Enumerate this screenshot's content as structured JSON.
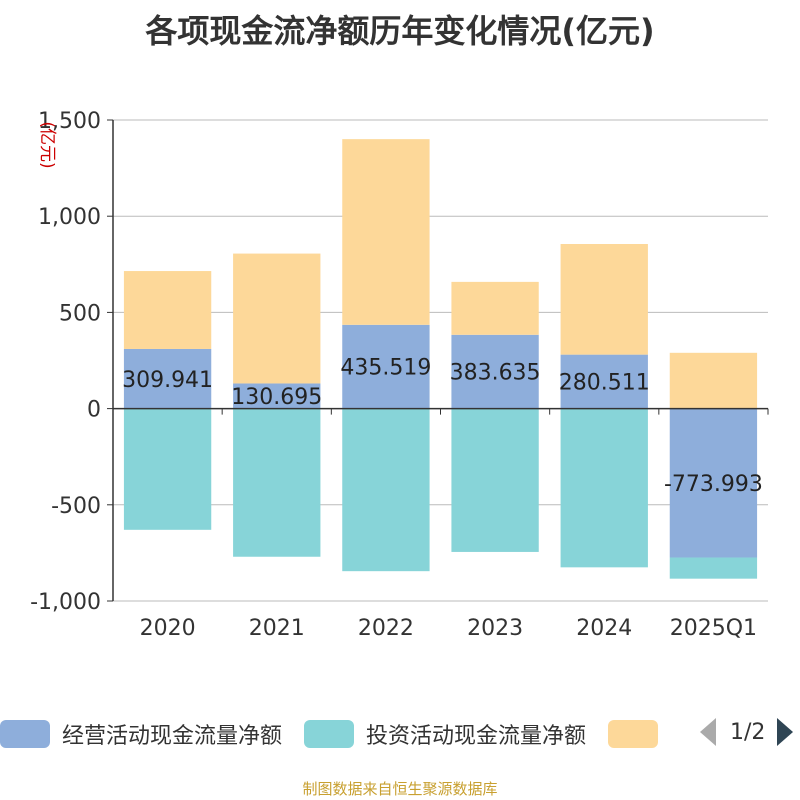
{
  "title": "各项现金流净额历年变化情况(亿元)",
  "source": "制图数据来自恒生聚源数据库",
  "legend_page": "1/2",
  "colors": {
    "operating": "#8eaedb",
    "investing": "#87d4d8",
    "financing": "#fdd899"
  },
  "chart_data": {
    "type": "bar",
    "stacked": true,
    "title": "各项现金流净额历年变化情况(亿元)",
    "ylabel": "(亿元)",
    "ylim": [
      -1000,
      1500
    ],
    "yticks": [
      -1000,
      -500,
      0,
      500,
      1000,
      1500
    ],
    "ytick_labels": [
      "-1,000",
      "-500",
      "0",
      "500",
      "1,000",
      "1,500"
    ],
    "grid": true,
    "legend_position": "bottom",
    "categories": [
      "2020",
      "2021",
      "2022",
      "2023",
      "2024",
      "2025Q1"
    ],
    "series": [
      {
        "name": "经营活动现金流量净额",
        "values": [
          309.941,
          130.695,
          435.519,
          383.635,
          280.511,
          -773.993
        ],
        "labels": [
          "309.941",
          "130.695",
          "435.519",
          "383.635",
          "280.511",
          "-773.993"
        ]
      },
      {
        "name": "投资活动现金流量净额",
        "values": [
          -630,
          -770,
          -845,
          -745,
          -825,
          -110
        ]
      },
      {
        "name": "",
        "values": [
          405,
          675,
          965,
          275,
          575,
          290
        ]
      }
    ]
  }
}
